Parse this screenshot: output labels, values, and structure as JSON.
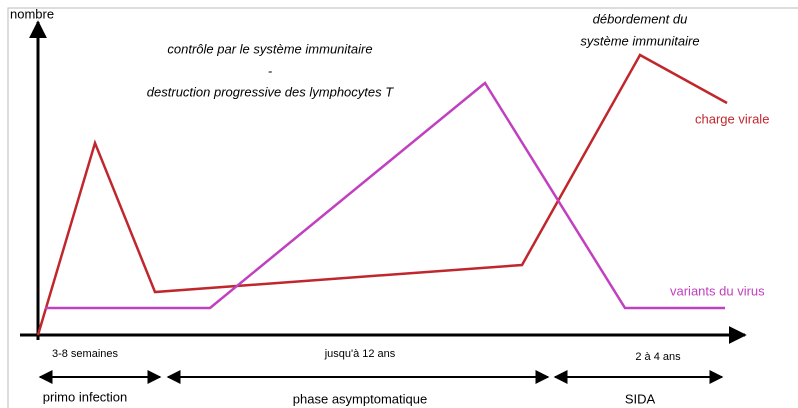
{
  "axis_label": "nombre",
  "annotations": {
    "immune_control": "contrôle par le système immunitaire",
    "separator": "-",
    "destruction": "destruction progressive des lymphocytes T",
    "overflow_line1": "débordement du",
    "overflow_line2": "système immunitaire"
  },
  "curves": {
    "viral_load": "charge virale",
    "variants": "variants du virus"
  },
  "phases": [
    {
      "duration": "3-8 semaines",
      "label": "primo infection"
    },
    {
      "duration": "jusqu'à 12 ans",
      "label": "phase asymptomatique"
    },
    {
      "duration": "2 à 4 ans",
      "label": "SIDA"
    }
  ]
}
